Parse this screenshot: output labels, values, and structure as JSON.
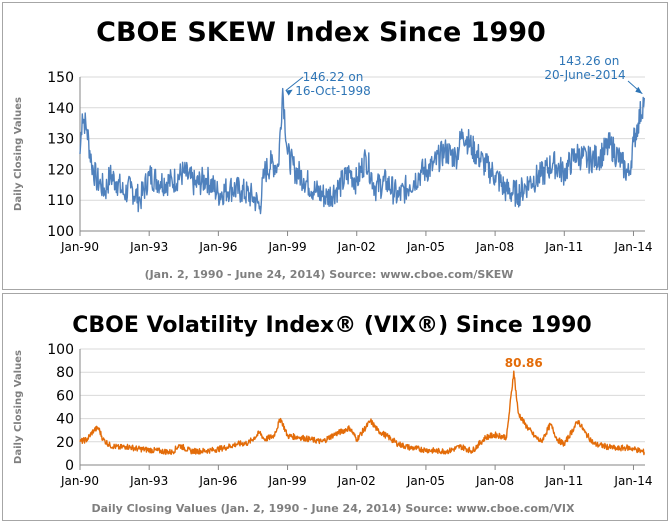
{
  "chart_data": [
    {
      "type": "line",
      "title": "CBOE SKEW Index Since 1990",
      "ylabel": "Daily Closing Values",
      "xlabel": "",
      "ylim": [
        100,
        150
      ],
      "y_ticks": [
        "100",
        "110",
        "120",
        "130",
        "140",
        "150"
      ],
      "x_ticks": [
        "Jan-90",
        "Jan-93",
        "Jan-96",
        "Jan-99",
        "Jan-02",
        "Jan-05",
        "Jan-08",
        "Jan-11",
        "Jan-14"
      ],
      "grid": "horizontal",
      "color": "#4f81bd",
      "series": [
        {
          "x": [
            1990.0,
            1990.1,
            1990.3,
            1990.5,
            1990.7,
            1990.9,
            1991.1,
            1991.3,
            1991.6,
            1991.9,
            1992.2,
            1992.6,
            1993.0,
            1993.5,
            1994.0,
            1994.5,
            1995.0,
            1995.5,
            1996.0,
            1996.5,
            1997.0,
            1997.5,
            1997.8,
            1998.0,
            1998.3,
            1998.6,
            1998.79,
            1999.0,
            1999.3,
            1999.7,
            2000.2,
            2000.7,
            2001.2,
            2001.7,
            2002.0,
            2002.4,
            2002.8,
            2003.3,
            2003.8,
            2004.3,
            2004.8,
            2005.3,
            2005.8,
            2006.3,
            2006.6,
            2007.0,
            2007.5,
            2008.0,
            2008.5,
            2009.0,
            2009.5,
            2010.0,
            2010.5,
            2011.0,
            2011.5,
            2012.0,
            2012.5,
            2013.0,
            2013.5,
            2013.8,
            2014.0,
            2014.2,
            2014.47
          ],
          "values": [
            125,
            138,
            133,
            122,
            117,
            115,
            113,
            118,
            116,
            112,
            114,
            110,
            118,
            116,
            116,
            119,
            115,
            117,
            112,
            114,
            113,
            111,
            108,
            119,
            122,
            121,
            146.22,
            125,
            120,
            117,
            113,
            111,
            114,
            119,
            116,
            124,
            114,
            116,
            111,
            115,
            119,
            121,
            126,
            124,
            132,
            127,
            122,
            118,
            113,
            112,
            116,
            118,
            122,
            119,
            125,
            123,
            124,
            128,
            122,
            118,
            129,
            135,
            143.26
          ]
        }
      ],
      "annotations": [
        {
          "text": "146.22 on",
          "text2": "16-Oct-1998",
          "x": 1998.79,
          "y": 146.22
        },
        {
          "text": "143.26 on",
          "text2": "20-June-2014",
          "x": 2014.47,
          "y": 143.26
        }
      ],
      "footer": "(Jan. 2, 1990 - June 24, 2014)     Source: www.cboe.com/SKEW"
    },
    {
      "type": "line",
      "title": "CBOE Volatility Index® (VIX®) Since 1990",
      "ylabel": "Daily Closing Values",
      "xlabel": "",
      "ylim": [
        0,
        100
      ],
      "y_ticks": [
        "0",
        "20",
        "40",
        "60",
        "80",
        "100"
      ],
      "x_ticks": [
        "Jan-90",
        "Jan-93",
        "Jan-96",
        "Jan-99",
        "Jan-02",
        "Jan-05",
        "Jan-08",
        "Jan-11",
        "Jan-14"
      ],
      "grid": "horizontal",
      "color": "#e36c09",
      "series": [
        {
          "x": [
            1990.0,
            1990.3,
            1990.6,
            1990.8,
            1991.0,
            1991.3,
            1991.7,
            1992.0,
            1992.5,
            1993.0,
            1993.5,
            1994.0,
            1994.3,
            1994.8,
            1995.3,
            1995.8,
            1996.3,
            1996.8,
            1997.3,
            1997.8,
            1998.0,
            1998.4,
            1998.7,
            1999.0,
            1999.5,
            2000.0,
            2000.5,
            2001.0,
            2001.7,
            2002.0,
            2002.6,
            2002.9,
            2003.3,
            2003.8,
            2004.3,
            2005.0,
            2005.5,
            2006.0,
            2006.5,
            2007.0,
            2007.6,
            2008.0,
            2008.5,
            2008.81,
            2009.0,
            2009.3,
            2009.7,
            2010.0,
            2010.4,
            2010.7,
            2011.0,
            2011.6,
            2011.9,
            2012.3,
            2012.8,
            2013.3,
            2013.7,
            2014.0,
            2014.47
          ],
          "values": [
            20,
            22,
            30,
            32,
            22,
            17,
            15,
            16,
            14,
            13,
            12,
            11,
            17,
            12,
            12,
            13,
            15,
            18,
            19,
            28,
            22,
            25,
            40,
            25,
            24,
            22,
            20,
            26,
            32,
            22,
            38,
            30,
            25,
            18,
            15,
            13,
            12,
            12,
            16,
            12,
            24,
            26,
            24,
            80.86,
            45,
            35,
            25,
            20,
            35,
            22,
            18,
            38,
            28,
            18,
            16,
            14,
            15,
            14,
            11
          ]
        }
      ],
      "annotations": [
        {
          "text": "80.86",
          "x": 2008.81,
          "y": 80.86
        }
      ],
      "footer": "Daily Closing Values   (Jan. 2, 1990 - June 24, 2014)  Source: www.cboe.com/VIX"
    }
  ]
}
